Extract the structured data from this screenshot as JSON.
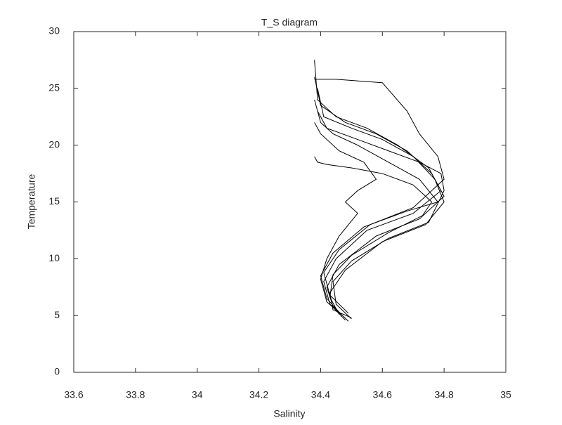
{
  "chart_data": {
    "type": "line",
    "title": "T_S diagram",
    "x_label": "Salinity",
    "y_label": "Temperature",
    "xlim": [
      33.6,
      35
    ],
    "xticks": [
      33.6,
      33.8,
      34,
      34.2,
      34.4,
      34.6,
      34.8,
      35
    ],
    "ylim": [
      0,
      30
    ],
    "yticks": [
      0,
      5,
      10,
      15,
      20,
      25,
      30
    ],
    "grid": false,
    "series": [
      {
        "color": "#000000",
        "x": [
          34.38,
          34.39,
          34.45,
          34.55,
          34.65,
          34.75,
          34.79,
          34.7,
          34.55,
          34.45,
          34.41,
          34.43,
          34.48
        ],
        "values": [
          27.5,
          24,
          22.5,
          21.5,
          20,
          18,
          16,
          14,
          12.5,
          10,
          8,
          6,
          4.6
        ]
      },
      {
        "color": "#000000",
        "x": [
          34.38,
          34.4,
          34.48,
          34.58,
          34.68,
          34.76,
          34.8,
          34.72,
          34.58,
          34.46,
          34.42,
          34.44,
          34.49
        ],
        "values": [
          26,
          23.5,
          22,
          21,
          19.5,
          17.5,
          15.5,
          13.5,
          12,
          9.5,
          7.5,
          5.8,
          4.5
        ]
      },
      {
        "color": "#000000",
        "x": [
          34.39,
          34.41,
          34.5,
          34.6,
          34.7,
          34.77,
          34.8,
          34.74,
          34.6,
          34.48,
          34.43,
          34.44,
          34.5
        ],
        "values": [
          25,
          22.5,
          21.5,
          20.5,
          19,
          17,
          15,
          13,
          11.5,
          9,
          7,
          5.5,
          4.8
        ]
      },
      {
        "color": "#000000",
        "x": [
          34.38,
          34.4,
          34.44,
          34.52,
          34.62,
          34.72,
          34.78,
          34.68,
          34.54,
          34.44,
          34.4,
          34.42,
          34.47
        ],
        "values": [
          24,
          22,
          21,
          20,
          18.5,
          17,
          15,
          14.2,
          12.8,
          10.5,
          8.5,
          6.5,
          5
        ]
      },
      {
        "color": "#000000",
        "x": [
          34.39,
          34.42,
          34.52,
          34.62,
          34.72,
          34.79,
          34.8,
          34.75,
          34.62,
          34.5,
          34.44,
          34.45,
          34.5
        ],
        "values": [
          23,
          21.5,
          20.5,
          19.5,
          18.5,
          17.5,
          16,
          13.2,
          11.8,
          9.8,
          8,
          6,
          4.7
        ]
      },
      {
        "color": "#000000",
        "x": [
          34.38,
          34.45,
          34.6,
          34.68,
          34.72,
          34.78,
          34.8,
          34.7,
          34.56,
          34.46,
          34.41,
          34.43,
          34.49
        ],
        "values": [
          25.8,
          25.8,
          25.5,
          23,
          21,
          19,
          17,
          14.5,
          13,
          10.8,
          8.8,
          6.8,
          5.2
        ]
      },
      {
        "color": "#000000",
        "x": [
          34.38,
          34.4,
          34.46,
          34.54,
          34.58,
          34.52,
          34.48,
          34.52,
          34.46,
          34.42,
          34.4,
          34.42,
          34.47
        ],
        "values": [
          22,
          21,
          19.5,
          18.5,
          17,
          16,
          15,
          14,
          12,
          10,
          8.2,
          6.2,
          5
        ]
      },
      {
        "color": "#000000",
        "x": [
          34.38,
          34.39,
          34.42,
          34.5,
          34.6,
          34.7,
          34.76,
          34.73,
          34.62,
          34.5,
          34.44,
          34.43,
          34.46
        ],
        "values": [
          19,
          18.5,
          18.3,
          18,
          17.5,
          16.5,
          15,
          13.8,
          12.3,
          10.3,
          8.6,
          6.6,
          5.1
        ]
      }
    ]
  }
}
